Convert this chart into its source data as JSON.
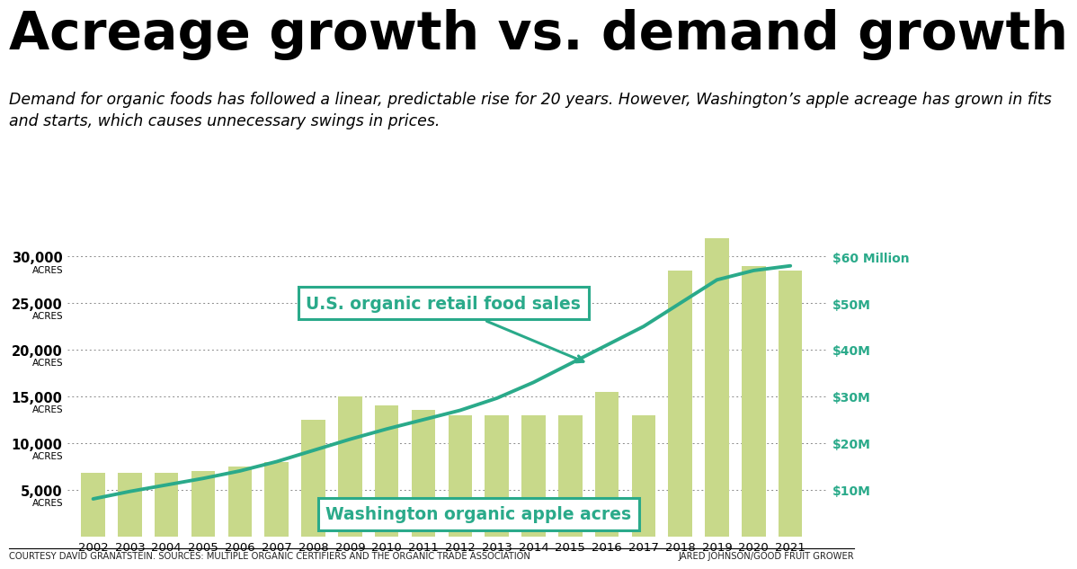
{
  "years": [
    2002,
    2003,
    2004,
    2005,
    2006,
    2007,
    2008,
    2009,
    2010,
    2011,
    2012,
    2013,
    2014,
    2015,
    2016,
    2017,
    2018,
    2019,
    2020,
    2021
  ],
  "apple_acres": [
    6800,
    6800,
    6800,
    7000,
    7500,
    8000,
    12500,
    15000,
    14000,
    13500,
    13000,
    13000,
    13000,
    13000,
    15500,
    13000,
    28500,
    32000,
    29000,
    28500
  ],
  "line_values": [
    4000,
    4800,
    5500,
    6200,
    7000,
    8000,
    9200,
    10400,
    11500,
    12500,
    13500,
    14800,
    16500,
    18500,
    20500,
    22500,
    25000,
    27500,
    28500,
    29000
  ],
  "bar_color": "#c8d98a",
  "line_color": "#2aaa8a",
  "title": "Acreage growth vs. demand growth",
  "subtitle": "Demand for organic foods has followed a linear, predictable rise for 20 years. However, Washington’s apple acreage has grown in fits\nand starts, which causes unnecessary swings in prices.",
  "yticks_left": [
    5000,
    10000,
    15000,
    20000,
    25000,
    30000
  ],
  "yticks_right_labels": [
    "$10M",
    "$20M",
    "$30M",
    "$40M",
    "$50M",
    "$60 Million"
  ],
  "ylabel_acres": "ACRES",
  "footer_left": "COURTESY DAVID GRANATSTEIN. SOURCES: MULTIPLE ORGANIC CERTIFIERS AND THE ORGANIC TRADE ASSOCIATION",
  "footer_right": "JARED JOHNSON/GOOD FRUIT GROWER",
  "annotation_line": "U.S. organic retail food sales",
  "annotation_bar": "Washington organic apple acres",
  "background_color": "#ffffff",
  "title_fontsize": 42,
  "subtitle_fontsize": 12.5
}
